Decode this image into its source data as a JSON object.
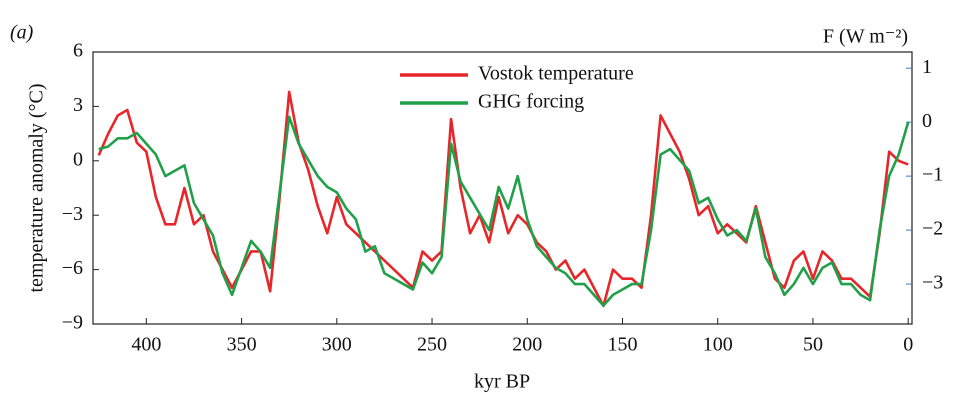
{
  "chart_data": {
    "type": "line",
    "panel_label": "(a)",
    "xlabel": "kyr BP",
    "ylabel": "temperature anomaly (°C)",
    "y2label": "F (W m⁻²)",
    "x": [
      425,
      420,
      415,
      410,
      405,
      400,
      395,
      390,
      385,
      380,
      375,
      370,
      365,
      360,
      355,
      350,
      345,
      340,
      335,
      330,
      325,
      320,
      315,
      310,
      305,
      300,
      295,
      290,
      285,
      280,
      275,
      270,
      265,
      260,
      255,
      250,
      245,
      240,
      235,
      230,
      225,
      220,
      215,
      210,
      205,
      200,
      195,
      190,
      185,
      180,
      175,
      170,
      165,
      160,
      155,
      150,
      145,
      140,
      135,
      130,
      125,
      120,
      115,
      110,
      105,
      100,
      95,
      90,
      85,
      80,
      75,
      70,
      65,
      60,
      55,
      50,
      45,
      40,
      35,
      30,
      25,
      20,
      15,
      10,
      5,
      0
    ],
    "series": [
      {
        "name": "Vostok temperature",
        "color": "#e8262a",
        "axis": "y",
        "values": [
          0.3,
          1.5,
          2.5,
          2.8,
          1.0,
          0.5,
          -2,
          -3.5,
          -3.5,
          -1.5,
          -3.5,
          -3,
          -5,
          -6,
          -7,
          -6,
          -5,
          -5,
          -7.2,
          -2,
          3.8,
          1,
          -0.5,
          -2.5,
          -4,
          -2,
          -3.5,
          -4,
          -4.5,
          -5,
          -5.5,
          -6,
          -6.5,
          -7,
          -5,
          -5.5,
          -5,
          2.3,
          -1.5,
          -4,
          -3,
          -4.5,
          -2,
          -4,
          -3,
          -3.5,
          -4.5,
          -5,
          -6,
          -5.5,
          -6.5,
          -6,
          -7,
          -8,
          -6,
          -6.5,
          -6.5,
          -7,
          -3,
          2.5,
          1.5,
          0.5,
          -1,
          -3,
          -2.5,
          -4,
          -3.5,
          -4,
          -4.5,
          -2.5,
          -4.5,
          -6.5,
          -7,
          -5.5,
          -5,
          -6.5,
          -5,
          -5.5,
          -6.5,
          -6.5,
          -7,
          -7.5,
          -4,
          0.5,
          0,
          -0.2
        ]
      },
      {
        "name": "GHG forcing",
        "color": "#21a04a",
        "axis": "y2",
        "values": [
          -0.5,
          -0.45,
          -0.3,
          -0.3,
          -0.2,
          -0.4,
          -0.6,
          -1.0,
          -0.9,
          -0.8,
          -1.5,
          -1.8,
          -2.1,
          -2.8,
          -3.2,
          -2.7,
          -2.2,
          -2.4,
          -2.7,
          -1.3,
          0.1,
          -0.4,
          -0.7,
          -1.0,
          -1.2,
          -1.3,
          -1.6,
          -1.8,
          -2.4,
          -2.3,
          -2.8,
          -2.9,
          -3.0,
          -3.1,
          -2.6,
          -2.8,
          -2.5,
          -0.4,
          -1.1,
          -1.4,
          -1.7,
          -2.0,
          -1.2,
          -1.6,
          -1.0,
          -1.8,
          -2.3,
          -2.5,
          -2.7,
          -2.8,
          -3.0,
          -3.0,
          -3.2,
          -3.4,
          -3.2,
          -3.1,
          -3.0,
          -3.0,
          -2.0,
          -0.6,
          -0.5,
          -0.7,
          -0.9,
          -1.5,
          -1.4,
          -1.8,
          -2.1,
          -2.0,
          -2.2,
          -1.6,
          -2.5,
          -2.8,
          -3.2,
          -3.0,
          -2.7,
          -3.0,
          -2.7,
          -2.6,
          -3.0,
          -3.0,
          -3.2,
          -3.3,
          -2.0,
          -1.0,
          -0.6,
          0.0
        ]
      }
    ],
    "xlim": [
      428,
      -2
    ],
    "xticks": [
      400,
      350,
      300,
      250,
      200,
      150,
      100,
      50,
      0
    ],
    "ylim": [
      -9,
      6
    ],
    "yticks": [
      {
        "value": -9,
        "label": "−9"
      },
      {
        "value": -6,
        "label": "−6"
      },
      {
        "value": -3,
        "label": "−3"
      },
      0,
      3,
      6
    ],
    "y2lim": [
      -3.74,
      1.3
    ],
    "y2ticks": [
      {
        "value": -3,
        "label": "−3"
      },
      {
        "value": -2,
        "label": "−2"
      },
      {
        "value": -1,
        "label": "−1"
      },
      0,
      1
    ]
  }
}
